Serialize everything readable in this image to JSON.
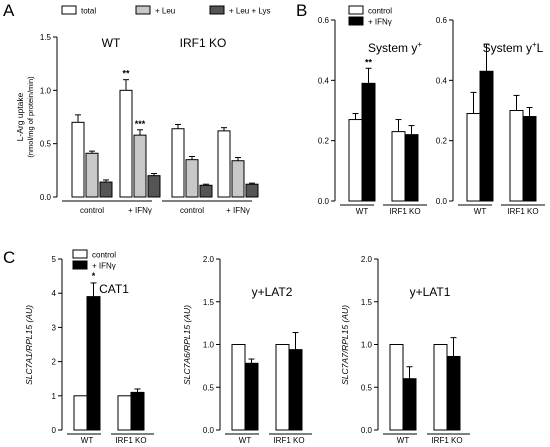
{
  "panels": {
    "A": "A",
    "B": "B",
    "C": "C"
  },
  "chart_data": [
    {
      "id": "A",
      "type": "bar",
      "ylabel": "L-Arg uptake",
      "ylabel2": "(nmol/mg of protein/min)",
      "ylim": [
        0,
        1.5
      ],
      "yticks": [
        "0.0",
        "0.5",
        "1.0",
        "1.5"
      ],
      "legend": [
        {
          "label": "total",
          "color": "#ffffff"
        },
        {
          "label": "+ Leu",
          "color": "#c8c8c8"
        },
        {
          "label": "+ Leu + Lys",
          "color": "#555555"
        }
      ],
      "groups": [
        {
          "title": "WT",
          "categories": [
            "control",
            "+ IFNγ"
          ]
        },
        {
          "title": "IRF1 KO",
          "categories": [
            "control",
            "+ IFNγ"
          ]
        }
      ],
      "series": [
        {
          "name": "total",
          "values": [
            0.7,
            1.0,
            0.64,
            0.62
          ],
          "errors": [
            0.07,
            0.1,
            0.04,
            0.03
          ]
        },
        {
          "name": "+ Leu",
          "values": [
            0.41,
            0.58,
            0.35,
            0.34
          ],
          "errors": [
            0.02,
            0.05,
            0.03,
            0.03
          ]
        },
        {
          "name": "+ Leu + Lys",
          "values": [
            0.14,
            0.2,
            0.11,
            0.12
          ],
          "errors": [
            0.02,
            0.02,
            0.01,
            0.01
          ]
        }
      ],
      "annotations": [
        {
          "text": "**",
          "category_index": 1,
          "series_index": 0
        },
        {
          "text": "***",
          "category_index": 1,
          "series_index": 1
        }
      ]
    },
    {
      "id": "B",
      "type": "bar",
      "ylim": [
        0,
        0.6
      ],
      "yticks": [
        "0.0",
        "0.2",
        "0.4",
        "0.6"
      ],
      "legend": [
        {
          "label": "control",
          "color": "#ffffff"
        },
        {
          "label": "+ IFNγ",
          "color": "#000000"
        }
      ],
      "subplots": [
        {
          "title": "System y",
          "title_sup": "+",
          "title_tail": "",
          "categories": [
            "WT",
            "IRF1 KO"
          ],
          "series": [
            {
              "name": "control",
              "values": [
                0.27,
                0.23
              ],
              "errors": [
                0.02,
                0.04
              ]
            },
            {
              "name": "+ IFNγ",
              "values": [
                0.39,
                0.22
              ],
              "errors": [
                0.05,
                0.03
              ]
            }
          ],
          "annotations": [
            {
              "text": "**",
              "category_index": 0,
              "series_index": 1
            }
          ]
        },
        {
          "title": "System y",
          "title_sup": "+",
          "title_tail": "L",
          "categories": [
            "WT",
            "IRF1 KO"
          ],
          "series": [
            {
              "name": "control",
              "values": [
                0.29,
                0.3
              ],
              "errors": [
                0.07,
                0.05
              ]
            },
            {
              "name": "+ IFNγ",
              "values": [
                0.43,
                0.28
              ],
              "errors": [
                0.09,
                0.03
              ]
            }
          ],
          "annotations": []
        }
      ]
    },
    {
      "id": "C",
      "type": "bar",
      "legend": [
        {
          "label": "control",
          "color": "#ffffff"
        },
        {
          "label": "+ IFNγ",
          "color": "#000000"
        }
      ],
      "subplots": [
        {
          "title": "CAT1",
          "ylabel": "SLC7A1/RPL15 (AU)",
          "ylim": [
            0,
            5
          ],
          "yticks": [
            "0",
            "1",
            "2",
            "3",
            "4",
            "5"
          ],
          "categories": [
            "WT",
            "IRF1 KO"
          ],
          "series": [
            {
              "name": "control",
              "values": [
                1.0,
                1.0
              ],
              "errors": [
                0,
                0
              ]
            },
            {
              "name": "+ IFNγ",
              "values": [
                3.9,
                1.1
              ],
              "errors": [
                0.4,
                0.1
              ]
            }
          ],
          "annotations": [
            {
              "text": "*",
              "category_index": 0,
              "series_index": 1
            }
          ]
        },
        {
          "title": "y+LAT2",
          "ylabel": "SLC7A6/RPL15 (AU)",
          "ylim": [
            0,
            2.0
          ],
          "yticks": [
            "0.0",
            "0.5",
            "1.0",
            "1.5",
            "2.0"
          ],
          "categories": [
            "WT",
            "IRF1 KO"
          ],
          "series": [
            {
              "name": "control",
              "values": [
                1.0,
                1.0
              ],
              "errors": [
                0,
                0
              ]
            },
            {
              "name": "+ IFNγ",
              "values": [
                0.78,
                0.94
              ],
              "errors": [
                0.05,
                0.2
              ]
            }
          ],
          "annotations": []
        },
        {
          "title": "y+LAT1",
          "ylabel": "SLC7A7/RPL15 (AU)",
          "ylim": [
            0,
            2.0
          ],
          "yticks": [
            "0.0",
            "0.5",
            "1.0",
            "1.5",
            "2.0"
          ],
          "categories": [
            "WT",
            "IRF1 KO"
          ],
          "series": [
            {
              "name": "control",
              "values": [
                1.0,
                1.0
              ],
              "errors": [
                0,
                0
              ]
            },
            {
              "name": "+ IFNγ",
              "values": [
                0.6,
                0.86
              ],
              "errors": [
                0.14,
                0.22
              ]
            }
          ],
          "annotations": []
        }
      ]
    }
  ]
}
